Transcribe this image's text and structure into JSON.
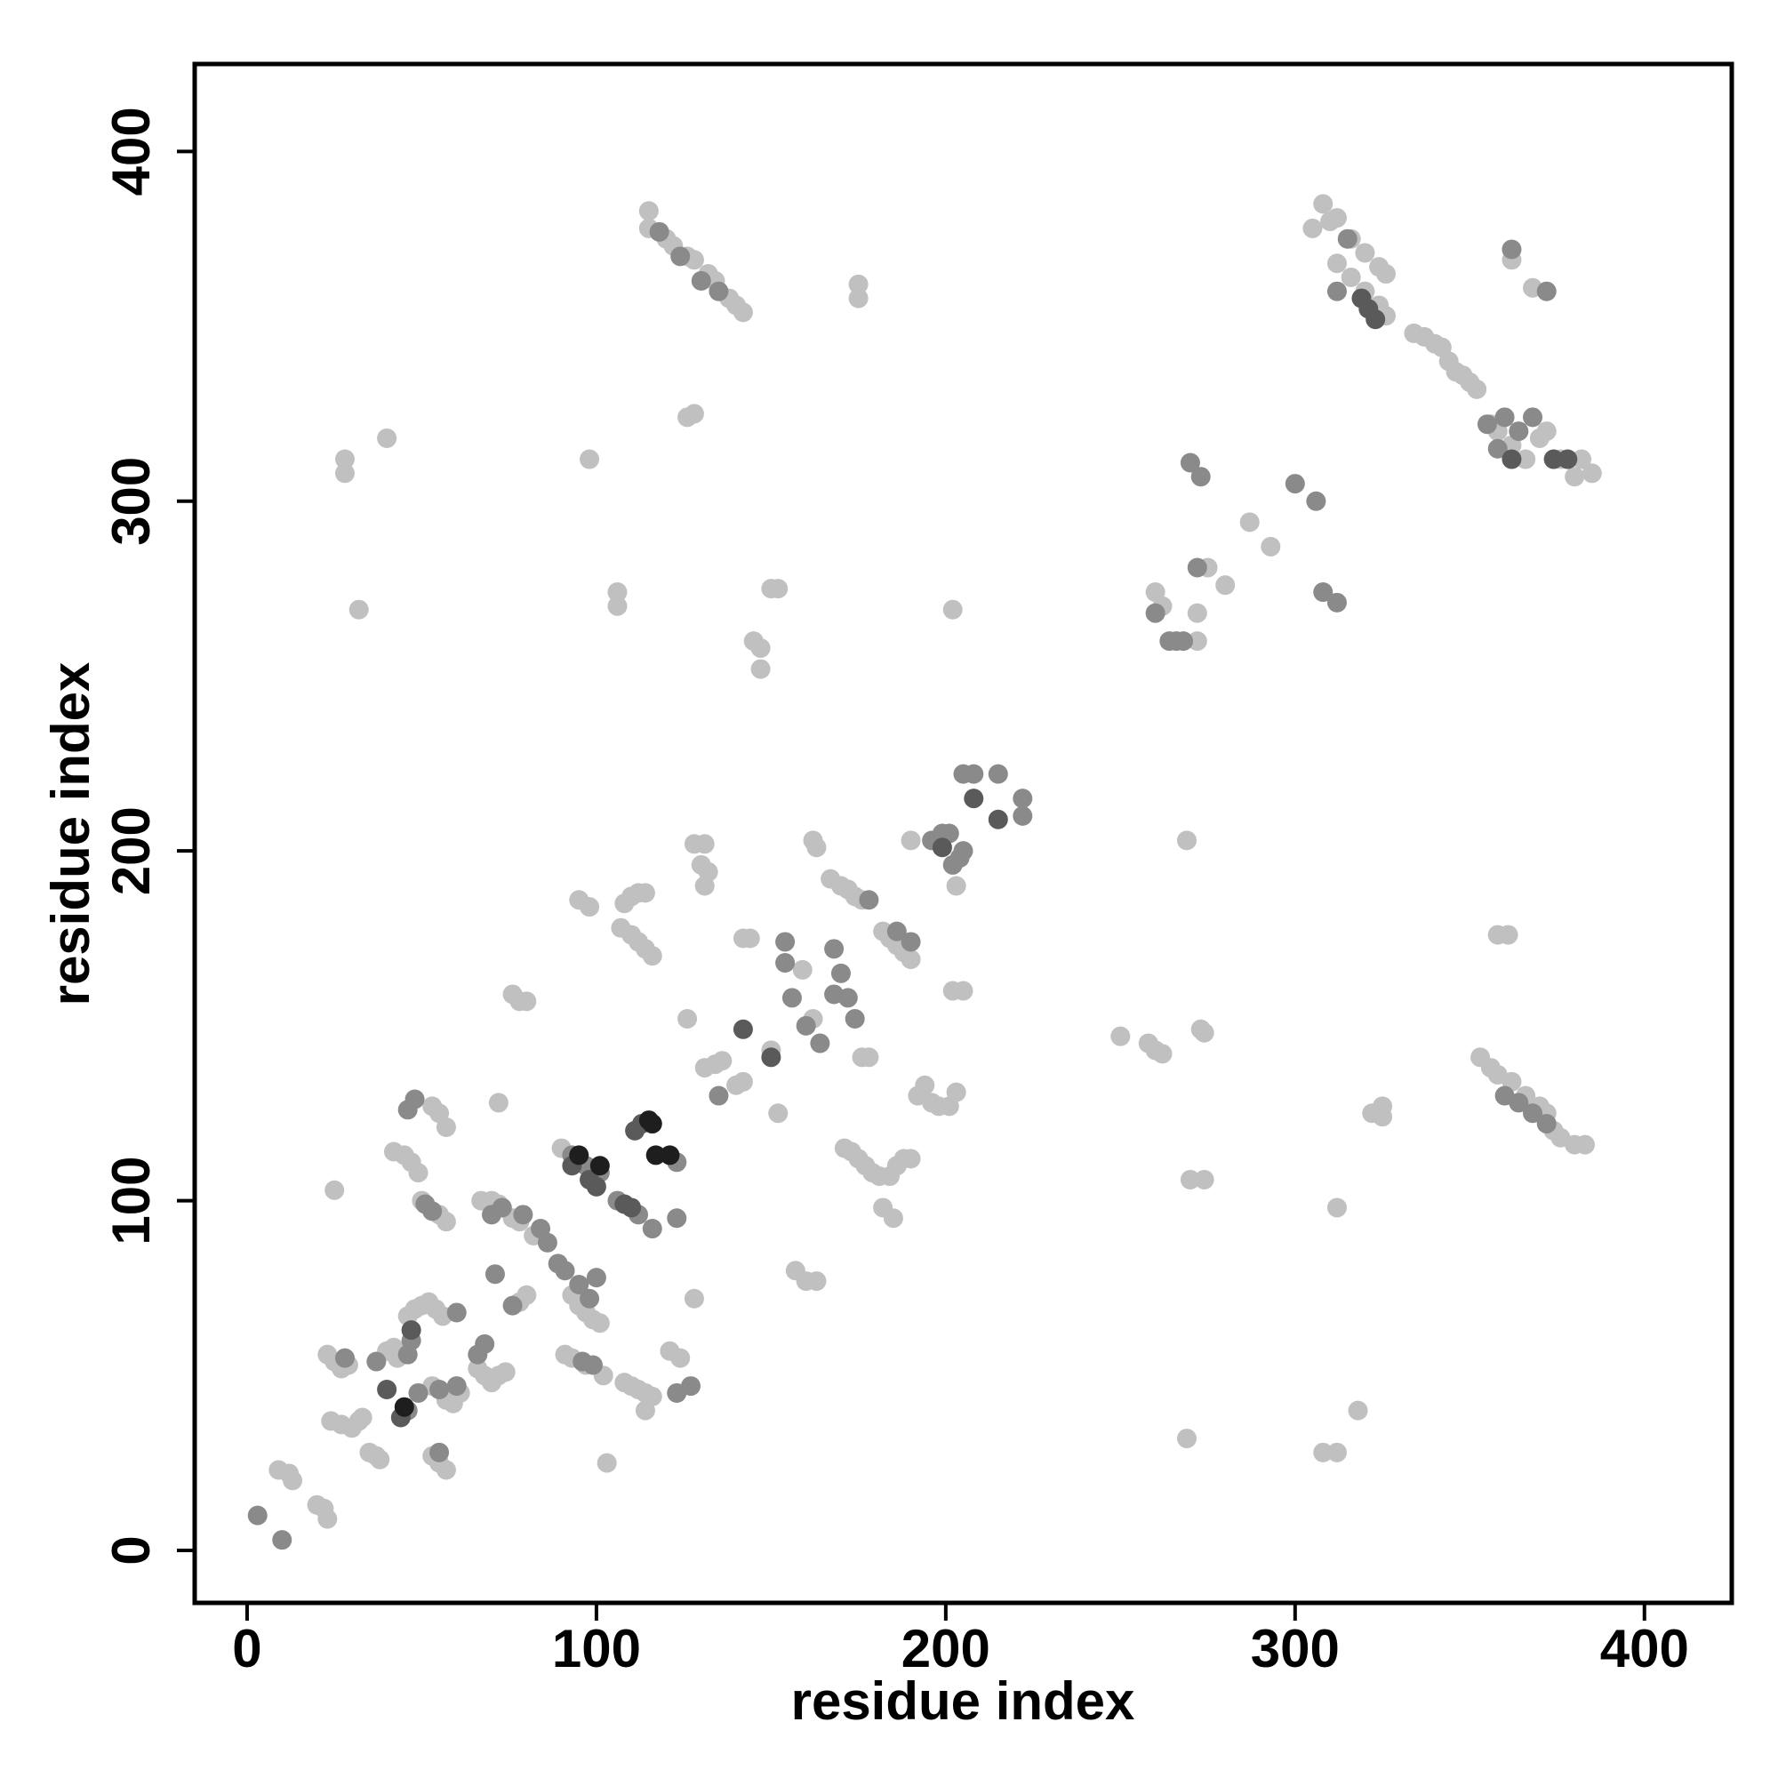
{
  "chart_data": {
    "type": "scatter",
    "xlabel": "residue index",
    "ylabel": "residue index",
    "xlim": [
      -15,
      425
    ],
    "ylim": [
      -15,
      425
    ],
    "xticks": [
      0,
      100,
      200,
      300,
      400
    ],
    "yticks": [
      0,
      100,
      200,
      300,
      400
    ],
    "series": [
      {
        "color": "#c0c0c0",
        "x": [
          9,
          12,
          13,
          20,
          22,
          23,
          23,
          25,
          27,
          29,
          24,
          27,
          30,
          32,
          33,
          35,
          37,
          38,
          40,
          42,
          43,
          46,
          48,
          50,
          52,
          54,
          56,
          53,
          57,
          59,
          61,
          53,
          55,
          57,
          66,
          68,
          70,
          72,
          74,
          67,
          70,
          72,
          76,
          78,
          82,
          78,
          80,
          93,
          95,
          97,
          99,
          101,
          91,
          93,
          97,
          102,
          108,
          110,
          112,
          114,
          116,
          114,
          121,
          124,
          128,
          42,
          45,
          47,
          49,
          50,
          55,
          57,
          53,
          55,
          57,
          72,
          25,
          90,
          95,
          98,
          108,
          110,
          112,
          114,
          107,
          110,
          112,
          114,
          116,
          76,
          78,
          80,
          126,
          126,
          128,
          128,
          131,
          130,
          132,
          131,
          131,
          134,
          136,
          140,
          142,
          142,
          144,
          150,
          152,
          159,
          162,
          157,
          160,
          163,
          162,
          163,
          176,
          178,
          167,
          170,
          172,
          174,
          176,
          171,
          173,
          175,
          177,
          179,
          181,
          184,
          186,
          188,
          190,
          182,
          185,
          182,
          184,
          186,
          188,
          190,
          190,
          192,
          194,
          196,
          198,
          201,
          203,
          203,
          202,
          205,
          115,
          115,
          120,
          122,
          126,
          128,
          132,
          134,
          138,
          140,
          142,
          175,
          175,
          98,
          28,
          28,
          40,
          32,
          106,
          106,
          145,
          147,
          147,
          150,
          152,
          202,
          103,
          260,
          262,
          269,
          275,
          272,
          272,
          280,
          287,
          293,
          250,
          258,
          260,
          262,
          273,
          274,
          270,
          274,
          269,
          308,
          312,
          318,
          312,
          322,
          325,
          325,
          308,
          305,
          310,
          312,
          316,
          320,
          324,
          326,
          312,
          316,
          320,
          324,
          326,
          334,
          337,
          340,
          342,
          344,
          346,
          348,
          350,
          352,
          356,
          358,
          362,
          366,
          370,
          372,
          376,
          380,
          382,
          385,
          362,
          368,
          353,
          356,
          358,
          362,
          366,
          370,
          372,
          374,
          376,
          380,
          383,
          358,
          361
        ],
        "y": [
          23,
          22,
          20,
          13,
          12,
          9,
          56,
          54,
          52,
          53,
          37,
          36,
          35,
          37,
          38,
          28,
          27,
          26,
          57,
          58,
          55,
          67,
          69,
          70,
          71,
          69,
          67,
          47,
          43,
          42,
          45,
          27,
          25,
          23,
          52,
          50,
          48,
          50,
          51,
          100,
          100,
          99,
          95,
          94,
          90,
          71,
          73,
          73,
          70,
          68,
          66,
          65,
          56,
          55,
          53,
          50,
          48,
          47,
          46,
          45,
          44,
          40,
          57,
          55,
          72,
          114,
          113,
          111,
          108,
          100,
          96,
          94,
          127,
          125,
          121,
          128,
          103,
          115,
          186,
          184,
          185,
          187,
          188,
          188,
          178,
          176,
          174,
          172,
          170,
          159,
          157,
          157,
          152,
          324,
          325,
          202,
          202,
          196,
          194,
          190,
          138,
          139,
          140,
          133,
          134,
          175,
          175,
          143,
          125,
          166,
          152,
          80,
          77,
          77,
          203,
          201,
          141,
          141,
          192,
          190,
          189,
          187,
          186,
          115,
          114,
          112,
          110,
          108,
          107,
          107,
          110,
          112,
          112,
          98,
          95,
          177,
          175,
          173,
          171,
          169,
          203,
          130,
          133,
          128,
          127,
          127,
          131,
          190,
          160,
          160,
          383,
          378,
          375,
          373,
          370,
          369,
          365,
          363,
          358,
          356,
          354,
          362,
          358,
          312,
          312,
          308,
          318,
          269,
          274,
          270,
          260,
          258,
          252,
          275,
          275,
          269,
          25,
          274,
          270,
          203,
          281,
          268,
          260,
          276,
          294,
          287,
          147,
          145,
          143,
          142,
          149,
          148,
          106,
          106,
          32,
          28,
          28,
          40,
          98,
          125,
          127,
          124,
          385,
          378,
          380,
          381,
          375,
          371,
          367,
          365,
          368,
          364,
          360,
          356,
          353,
          348,
          347,
          345,
          344,
          340,
          337,
          336,
          334,
          332,
          322,
          320,
          316,
          312,
          318,
          320,
          312,
          307,
          312,
          308,
          369,
          361,
          141,
          138,
          136,
          134,
          130,
          127,
          125,
          120,
          118,
          116,
          116,
          176,
          176
        ]
      },
      {
        "color": "#8a8a8a",
        "x": [
          3,
          10,
          28,
          37,
          47,
          46,
          55,
          60,
          55,
          49,
          46,
          60,
          66,
          68,
          70,
          73,
          79,
          71,
          76,
          84,
          86,
          89,
          91,
          95,
          98,
          100,
          96,
          99,
          127,
          123,
          51,
          53,
          46,
          48,
          93,
          97,
          101,
          106,
          112,
          116,
          123,
          123,
          135,
          154,
          154,
          156,
          160,
          164,
          168,
          170,
          168,
          172,
          174,
          178,
          186,
          190,
          196,
          199,
          201,
          202,
          204,
          205,
          205,
          208,
          215,
          222,
          222,
          118,
          124,
          130,
          135,
          260,
          264,
          266,
          268,
          270,
          273,
          272,
          300,
          306,
          308,
          312,
          312,
          315,
          355,
          358,
          360,
          364,
          368,
          362,
          372,
          360,
          364,
          368,
          372
        ],
        "y": [
          10,
          3,
          55,
          54,
          60,
          56,
          46,
          47,
          28,
          45,
          40,
          68,
          56,
          59,
          96,
          98,
          96,
          79,
          70,
          92,
          88,
          82,
          80,
          76,
          72,
          78,
          54,
          53,
          47,
          45,
          99,
          97,
          126,
          129,
          113,
          110,
          108,
          100,
          96,
          92,
          111,
          95,
          130,
          174,
          168,
          158,
          150,
          145,
          172,
          165,
          159,
          158,
          152,
          186,
          177,
          174,
          203,
          205,
          205,
          196,
          198,
          200,
          222,
          222,
          222,
          215,
          210,
          377,
          370,
          363,
          360,
          268,
          260,
          260,
          260,
          311,
          307,
          281,
          305,
          300,
          274,
          271,
          360,
          375,
          322,
          315,
          324,
          320,
          324,
          372,
          360,
          130,
          128,
          125,
          122
        ]
      },
      {
        "color": "#5a5a5a",
        "x": [
          47,
          40,
          93,
          98,
          100,
          108,
          110,
          111,
          113,
          142,
          150,
          199,
          208,
          215,
          319,
          321,
          323,
          374,
          378,
          362,
          44
        ],
        "y": [
          63,
          46,
          110,
          106,
          104,
          99,
          98,
          120,
          122,
          149,
          141,
          201,
          215,
          209,
          358,
          355,
          352,
          312,
          312,
          312,
          38
        ]
      },
      {
        "color": "#1e1e1e",
        "x": [
          45,
          95,
          101,
          115,
          117,
          121,
          116
        ],
        "y": [
          41,
          113,
          110,
          123,
          113,
          113,
          122
        ]
      }
    ]
  }
}
